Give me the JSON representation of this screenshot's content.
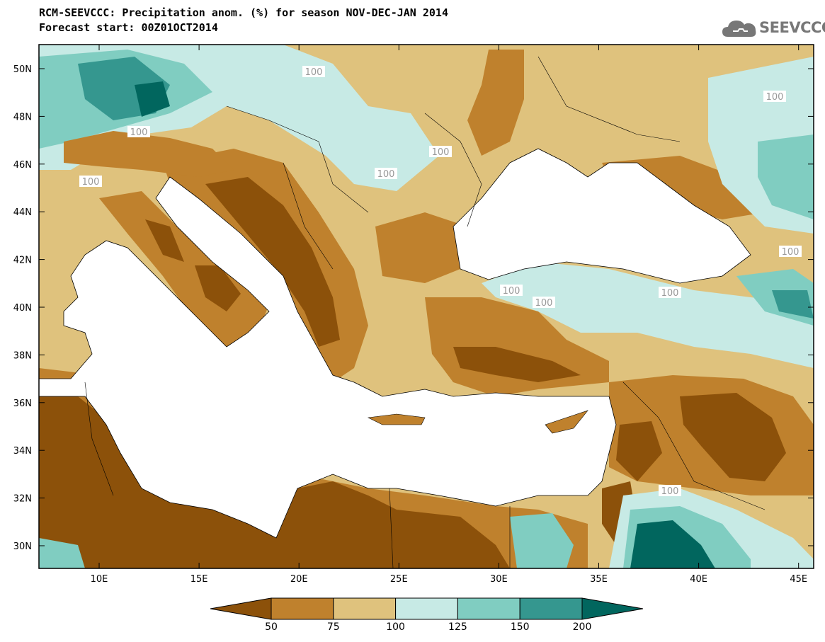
{
  "header": {
    "title_line1": "RCM-SEEVCCC: Precipitation anom. (%) for season NOV-DEC-JAN 2014",
    "title_line2": "Forecast start: 00Z01OCT2014"
  },
  "logo": {
    "text": "SEEVCCC",
    "icon": "cloud-icon"
  },
  "map": {
    "lat_labels": [
      "50N",
      "48N",
      "46N",
      "44N",
      "42N",
      "40N",
      "38N",
      "36N",
      "34N",
      "32N",
      "30N"
    ],
    "lon_labels": [
      "10E",
      "15E",
      "20E",
      "25E",
      "30E",
      "35E",
      "40E",
      "45E"
    ],
    "contour_labels": [
      "100",
      "100",
      "100",
      "100",
      "100",
      "100",
      "100",
      "100",
      "100",
      "100",
      "100"
    ],
    "colors": {
      "ocean": "#ffffff",
      "dry_strong": "#8c510a",
      "dry_mid": "#bf812d",
      "dry_light": "#dfc27d",
      "wet_light": "#c7eae5",
      "wet_mid": "#80cdc1",
      "wet_strong": "#35978f",
      "wet_extreme": "#01665e"
    }
  },
  "colorbar": {
    "tick_labels": [
      "50",
      "75",
      "100",
      "125",
      "150",
      "200"
    ],
    "colors": [
      "#8c510a",
      "#bf812d",
      "#dfc27d",
      "#c7eae5",
      "#80cdc1",
      "#35978f",
      "#01665e"
    ]
  }
}
